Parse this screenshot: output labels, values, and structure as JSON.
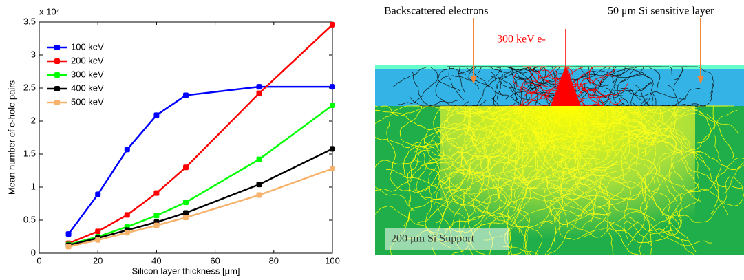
{
  "chart_data": {
    "type": "line",
    "y_scale_label": "x 10⁴",
    "xlabel": "Silicon layer thickness [μm]",
    "ylabel": "Mean number of e-hole pairs",
    "x": [
      10,
      20,
      30,
      40,
      50,
      75,
      100
    ],
    "series": [
      {
        "name": "100 keV",
        "color": "#0000ff",
        "values": [
          0.29,
          0.89,
          1.57,
          2.09,
          2.39,
          2.52,
          2.52
        ]
      },
      {
        "name": "200 keV",
        "color": "#ff0000",
        "values": [
          0.15,
          0.33,
          0.58,
          0.91,
          1.3,
          2.42,
          3.46
        ]
      },
      {
        "name": "300 keV",
        "color": "#00ff00",
        "values": [
          0.13,
          0.25,
          0.4,
          0.57,
          0.77,
          1.42,
          2.24
        ]
      },
      {
        "name": "400 keV",
        "color": "#000000",
        "values": [
          0.12,
          0.23,
          0.35,
          0.47,
          0.61,
          1.04,
          1.58
        ]
      },
      {
        "name": "500 keV",
        "color": "#f7b26b",
        "values": [
          0.1,
          0.2,
          0.31,
          0.42,
          0.54,
          0.88,
          1.28
        ]
      }
    ],
    "xlim": [
      0,
      100
    ],
    "xticks": [
      0,
      20,
      40,
      60,
      80,
      100
    ],
    "ylim": [
      0,
      3.5
    ],
    "yticks": [
      0,
      0.5,
      1,
      1.5,
      2,
      2.5,
      3,
      3.5
    ],
    "legend": "upper-left"
  },
  "simulation": {
    "labels": {
      "backscatter": "Backscattered electrons",
      "sensitive": "50 μm Si sensitive layer",
      "beam": "300 keV e-",
      "support": "200 μm Si Support"
    }
  }
}
